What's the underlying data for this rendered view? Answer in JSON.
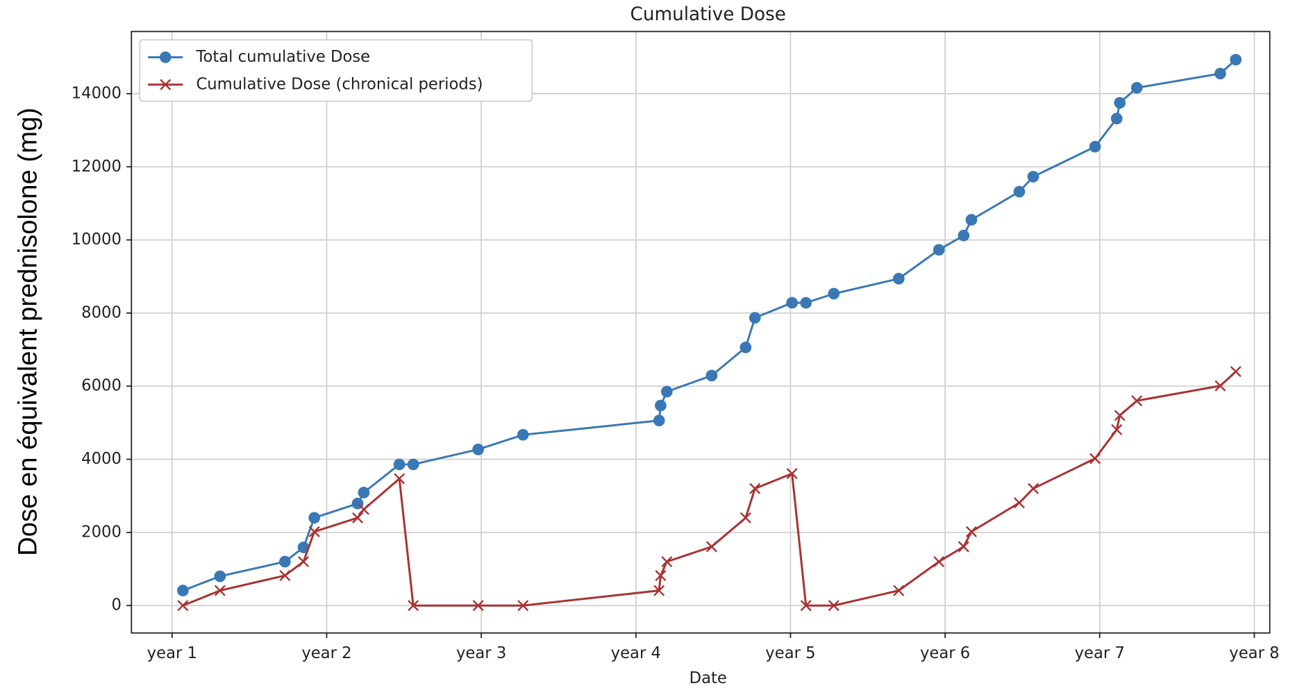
{
  "chart_data": {
    "type": "line",
    "title": "Cumulative Dose",
    "xlabel": "Date",
    "ylabel": "Dose en équivalent prednisolone (mg)",
    "x": [
      1.07,
      1.31,
      1.73,
      1.85,
      1.92,
      2.2,
      2.24,
      2.47,
      2.56,
      2.98,
      3.27,
      4.15,
      4.16,
      4.2,
      4.49,
      4.71,
      4.77,
      5.01,
      5.1,
      5.28,
      5.7,
      5.96,
      6.12,
      6.17,
      6.48,
      6.57,
      6.97,
      7.11,
      7.13,
      7.24,
      7.78,
      7.88
    ],
    "series": [
      {
        "name": "Total cumulative Dose",
        "color": "#3a78b5",
        "marker": "o",
        "values": [
          410,
          800,
          1200,
          1590,
          2400,
          2790,
          3090,
          3860,
          3860,
          4270,
          4670,
          5060,
          5470,
          5850,
          6290,
          7060,
          7870,
          8280,
          8280,
          8530,
          8940,
          9730,
          10120,
          10550,
          11320,
          11730,
          12550,
          13320,
          13750,
          14160,
          14550,
          14930
        ]
      },
      {
        "name": "Cumulative Dose (chronical periods)",
        "color": "#a83232",
        "marker": "x",
        "values": [
          0,
          410,
          820,
          1200,
          2020,
          2400,
          2630,
          3470,
          0,
          0,
          0,
          410,
          820,
          1200,
          1610,
          2400,
          3200,
          3610,
          0,
          0,
          410,
          1200,
          1610,
          2020,
          2810,
          3200,
          4020,
          4810,
          5200,
          5600,
          6010,
          6400
        ]
      }
    ],
    "xlim": [
      0.737,
      8.1
    ],
    "ylim": [
      -750,
      15700
    ],
    "xticks": [
      {
        "value": 1,
        "label": "year 1"
      },
      {
        "value": 2,
        "label": "year 2"
      },
      {
        "value": 3,
        "label": "year 3"
      },
      {
        "value": 4,
        "label": "year 4"
      },
      {
        "value": 5,
        "label": "year 5"
      },
      {
        "value": 6,
        "label": "year 6"
      },
      {
        "value": 7,
        "label": "year 7"
      },
      {
        "value": 8,
        "label": "year 8"
      }
    ],
    "yticks": [
      0,
      2000,
      4000,
      6000,
      8000,
      10000,
      12000,
      14000
    ],
    "grid": true,
    "legend": "upper left"
  }
}
